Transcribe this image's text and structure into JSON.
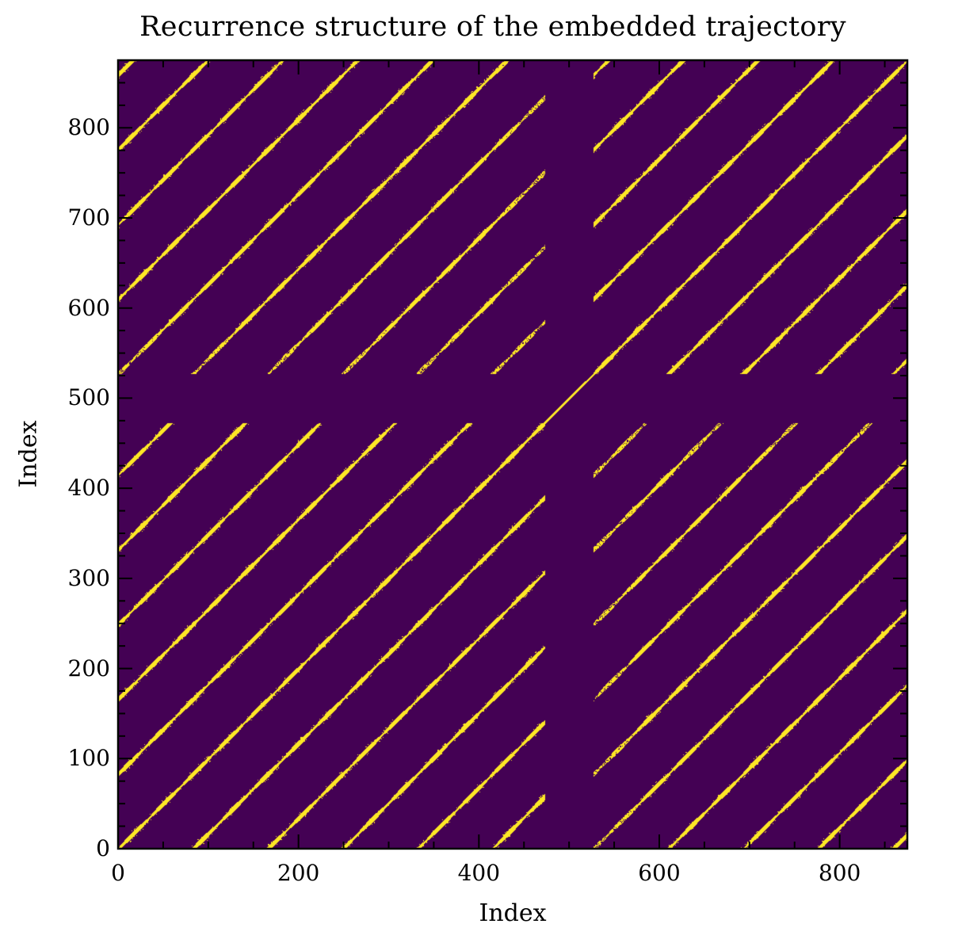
{
  "chart_data": {
    "type": "heatmap",
    "subtype": "recurrence_plot",
    "title": "Recurrence structure of the embedded trajectory",
    "xlabel": "Index",
    "ylabel": "Index",
    "xlim": [
      0,
      875
    ],
    "ylim": [
      0,
      875
    ],
    "x_major_ticks": [
      0,
      200,
      400,
      600,
      800
    ],
    "x_minor_step": 50,
    "y_major_ticks": [
      0,
      100,
      200,
      300,
      400,
      500,
      600,
      700,
      800
    ],
    "y_minor_step": 25,
    "grid": false,
    "legend": null,
    "colormap": "viridis (binary)",
    "colors": {
      "non_recurrent": "#440154",
      "recurrent": "#fde725"
    },
    "structure": {
      "stripe_period": 83,
      "segments": [
        {
          "start": 0,
          "end": 473
        },
        {
          "start": 527,
          "end": 875
        }
      ],
      "gap_band": [
        473,
        527
      ],
      "main_diagonal": "continuous through gap",
      "segment_phase_offsets": [
        0,
        29
      ],
      "stripe_halfwidth": 2.2
    }
  },
  "ticks": {
    "x": [
      "0",
      "200",
      "400",
      "600",
      "800"
    ],
    "y": [
      "0",
      "100",
      "200",
      "300",
      "400",
      "500",
      "600",
      "700",
      "800"
    ]
  }
}
